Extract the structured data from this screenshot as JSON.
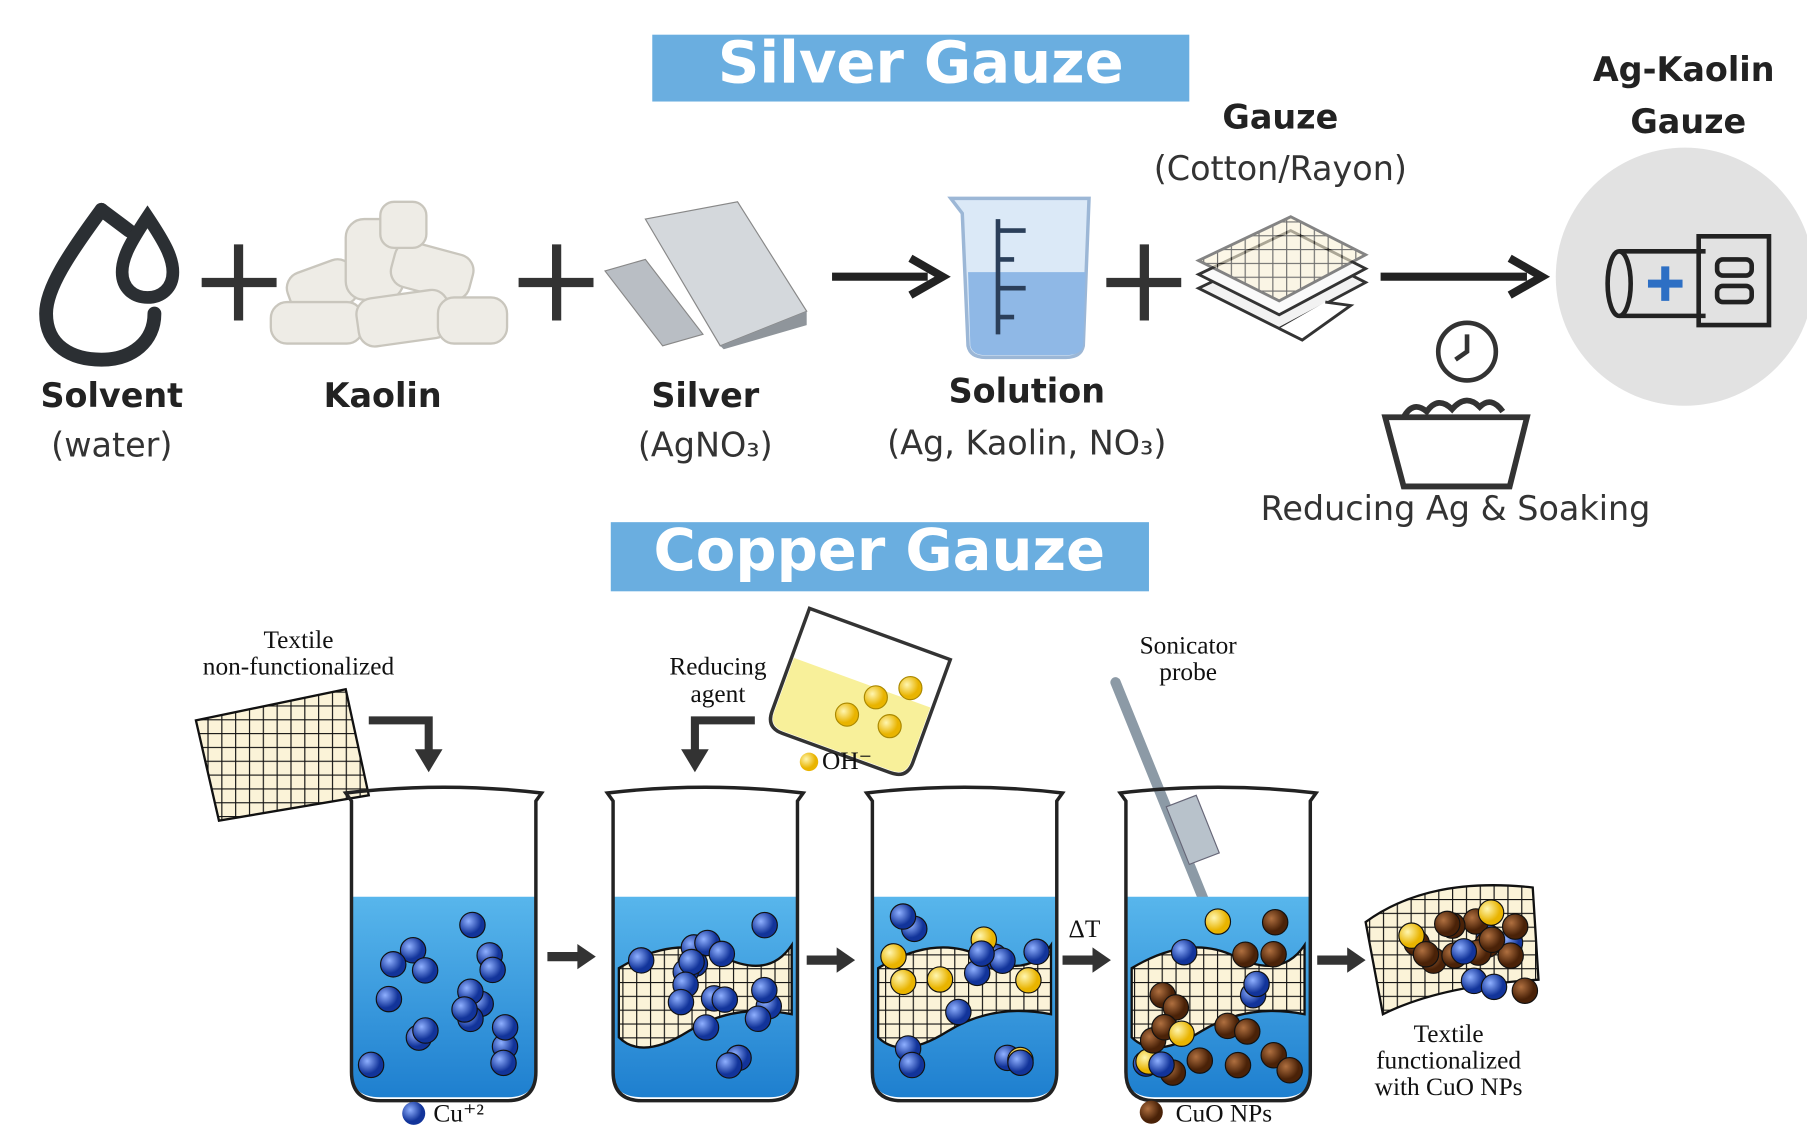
{
  "silver": {
    "title": "Silver Gauze",
    "solvent": {
      "label": "Solvent",
      "sub": "(water)"
    },
    "kaolin": {
      "label": "Kaolin"
    },
    "silver": {
      "label": "Silver",
      "sub": "(AgNO₃)"
    },
    "solution": {
      "label": "Solution",
      "sub": "(Ag, Kaolin, NO₃)"
    },
    "gauze": {
      "label": "Gauze",
      "sub": "(Cotton/Rayon)"
    },
    "product": {
      "label": "Ag-Kaolin",
      "sub": "Gauze"
    },
    "step": "Reducing Ag & Soaking"
  },
  "copper": {
    "title": "Copper Gauze",
    "textile_in": [
      "Textile",
      "non-functionalized"
    ],
    "reducing": [
      "Reducing",
      "agent"
    ],
    "oh": "OH⁻",
    "sonicator": [
      "Sonicator",
      "probe"
    ],
    "heat": "ΔT",
    "cu": "Cu⁺²",
    "cuo": "CuO NPs",
    "textile_out": [
      "Textile",
      "functionalized",
      "with CuO NPs"
    ]
  }
}
